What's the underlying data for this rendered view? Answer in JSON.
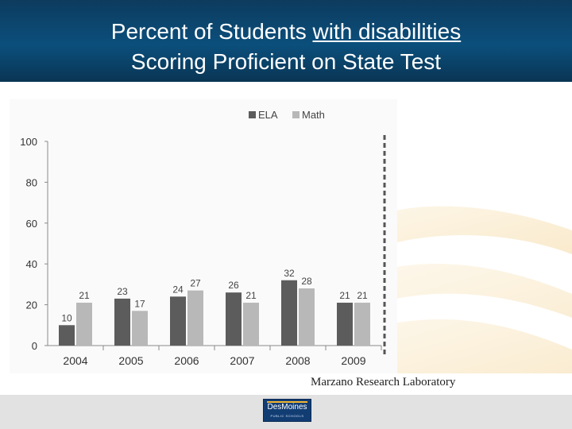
{
  "header": {
    "line1_prefix": "Percent of Students ",
    "line1_underlined": "with disabilities",
    "line2": "Scoring Proficient on State Test"
  },
  "chart_data": {
    "type": "bar",
    "categories": [
      "2004",
      "2005",
      "2006",
      "2007",
      "2008",
      "2009"
    ],
    "series": [
      {
        "name": "ELA",
        "values": [
          10,
          23,
          24,
          26,
          32,
          21
        ],
        "color": "#5c5c5c"
      },
      {
        "name": "Math",
        "values": [
          21,
          17,
          27,
          21,
          28,
          21
        ],
        "color": "#b8b8b8"
      }
    ],
    "ylim": [
      0,
      100
    ],
    "yticks": [
      0,
      20,
      40,
      60,
      80,
      100
    ],
    "grid": false,
    "legend": "top"
  },
  "footer": {
    "credit": "Marzano Research Laboratory",
    "logo_text": "DesMoines",
    "logo_sub": "PUBLIC SCHOOLS"
  },
  "colors": {
    "header": "#0b4f7c",
    "footer": "#e2e2e2",
    "ela": "#5c5c5c",
    "math": "#b8b8b8"
  }
}
